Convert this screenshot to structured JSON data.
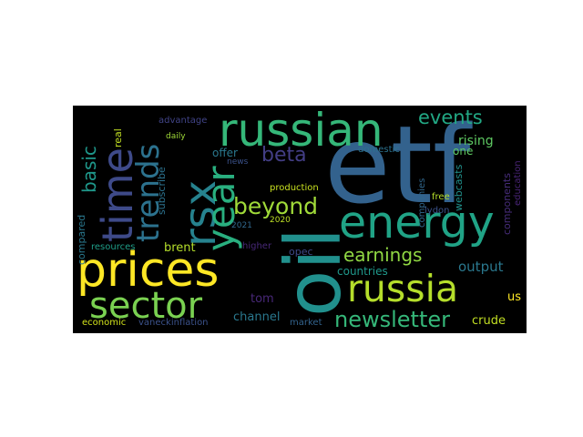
{
  "wordcloud": {
    "background": "#000000",
    "words": {
      "etf": {
        "text": "etf",
        "color": "#33628d"
      },
      "oil": {
        "text": "oil",
        "color": "#21908d"
      },
      "prices": {
        "text": "prices",
        "color": "#fde725"
      },
      "russian": {
        "text": "russian",
        "color": "#35b779"
      },
      "energy": {
        "text": "energy",
        "color": "#20a386"
      },
      "russia": {
        "text": "russia",
        "color": "#b5de2b"
      },
      "sector": {
        "text": "sector",
        "color": "#7ad151"
      },
      "rsx": {
        "text": "rsx",
        "color": "#26828e"
      },
      "time": {
        "text": "time",
        "color": "#3e4a89"
      },
      "trends": {
        "text": "trends",
        "color": "#2c728e"
      },
      "year": {
        "text": "year",
        "color": "#29af7f"
      },
      "newsletter": {
        "text": "newsletter",
        "color": "#35b779"
      },
      "beyond": {
        "text": "beyond",
        "color": "#a0da39"
      },
      "earnings": {
        "text": "earnings",
        "color": "#90d743"
      },
      "events": {
        "text": "events",
        "color": "#22a884"
      },
      "beta": {
        "text": "beta",
        "color": "#433e85"
      },
      "basic": {
        "text": "basic",
        "color": "#1f988b"
      },
      "output": {
        "text": "output",
        "color": "#2a788e"
      },
      "rising": {
        "text": "rising",
        "color": "#5ec962"
      },
      "crude": {
        "text": "crude",
        "color": "#c2df23"
      },
      "channel": {
        "text": "channel",
        "color": "#2a788e"
      },
      "tom": {
        "text": "tom",
        "color": "#482878"
      },
      "countries": {
        "text": "countries",
        "color": "#1f988b"
      },
      "brent": {
        "text": "brent",
        "color": "#b5de2b"
      },
      "us": {
        "text": "us",
        "color": "#fde725"
      },
      "opec": {
        "text": "opec",
        "color": "#3e4a89"
      },
      "components": {
        "text": "components",
        "color": "#472d7b"
      },
      "education": {
        "text": "education",
        "color": "#482475"
      },
      "webcasts": {
        "text": "webcasts",
        "color": "#21918c"
      },
      "lydon": {
        "text": "lydon",
        "color": "#3b528b"
      },
      "free": {
        "text": "free",
        "color": "#b5de2b"
      },
      "one": {
        "text": "one",
        "color": "#5ec962"
      },
      "companies": {
        "text": "companies",
        "color": "#31688e"
      },
      "domestic": {
        "text": "domestic",
        "color": "#2c728e"
      },
      "production": {
        "text": "production",
        "color": "#c8e020"
      },
      "offer": {
        "text": "offer",
        "color": "#2a788e"
      },
      "higher": {
        "text": "higher",
        "color": "#482878"
      },
      "2020": {
        "text": "2020",
        "color": "#bddf26"
      },
      "2021": {
        "text": "2021",
        "color": "#31688e"
      },
      "news": {
        "text": "news",
        "color": "#3b528b"
      },
      "daily": {
        "text": "daily",
        "color": "#a0da39"
      },
      "subscribe": {
        "text": "subscribe",
        "color": "#2c728e"
      },
      "advantage": {
        "text": "advantage",
        "color": "#414487"
      },
      "real": {
        "text": "real",
        "color": "#c2df23"
      },
      "compared": {
        "text": "compared",
        "color": "#2a788e"
      },
      "resources": {
        "text": "resources",
        "color": "#1f9e89"
      },
      "economic": {
        "text": "economic",
        "color": "#d2e21b"
      },
      "vaneckinflation": {
        "text": "vaneckinflation",
        "color": "#3b528b"
      },
      "market": {
        "text": "market",
        "color": "#33638d"
      }
    }
  }
}
